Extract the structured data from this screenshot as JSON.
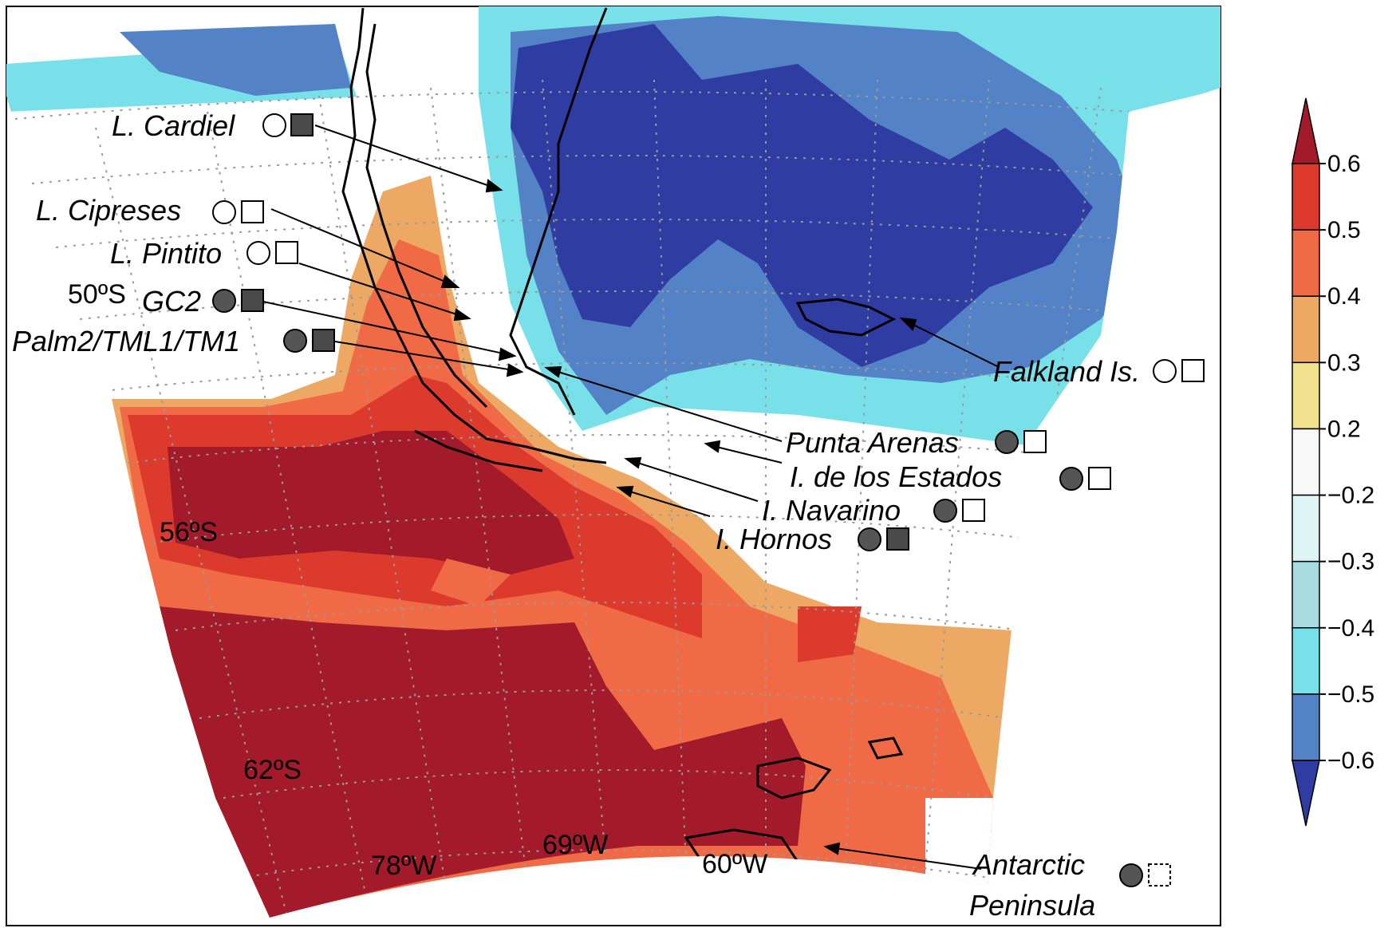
{
  "map": {
    "coordinate_labels": [
      "50ºS",
      "56ºS",
      "62ºS",
      "78ºW",
      "69ºW",
      "60ºW"
    ],
    "sites": [
      {
        "name": "L. Cardiel",
        "circle": "open",
        "square": "filled"
      },
      {
        "name": "L. Cipreses",
        "circle": "open",
        "square": "open"
      },
      {
        "name": "L. Pintito",
        "circle": "open",
        "square": "open"
      },
      {
        "name": "GC2",
        "circle": "filled",
        "square": "filled"
      },
      {
        "name": "Palm2/TML1/TM1",
        "circle": "filled",
        "square": "filled"
      },
      {
        "name": "Falkland Is.",
        "circle": "open",
        "square": "open"
      },
      {
        "name": "Punta Arenas",
        "circle": "filled",
        "square": "open"
      },
      {
        "name": "I. de los Estados",
        "circle": "filled",
        "square": "open"
      },
      {
        "name": "I. Navarino",
        "circle": "filled",
        "square": "open"
      },
      {
        "name": "I. Hornos",
        "circle": "filled",
        "square": "filled"
      },
      {
        "name": "Antarctic",
        "circle": "filled",
        "square": "dashed"
      },
      {
        "name": "Peninsula"
      }
    ]
  },
  "colorbar": {
    "ticks": [
      "0.6",
      "0.5",
      "0.4",
      "0.3",
      "0.2",
      "−0.2",
      "−0.3",
      "−0.4",
      "−0.5",
      "−0.6"
    ],
    "colors": [
      "#a31a2a",
      "#dd3a2e",
      "#ef6a45",
      "#eda864",
      "#f1e08d",
      "#f8f8f8",
      "#dff4f4",
      "#a9dce0",
      "#78e0e8",
      "#5383c6",
      "#2f3da2"
    ]
  }
}
